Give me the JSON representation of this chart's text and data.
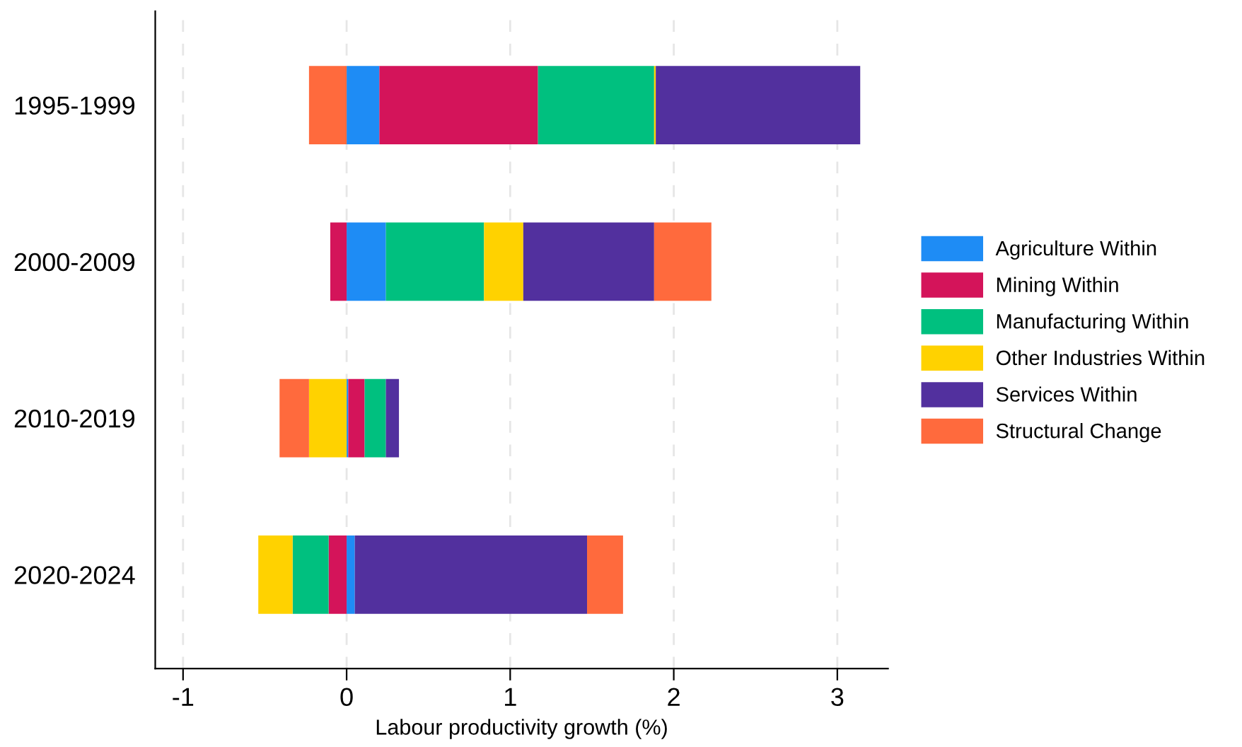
{
  "chart_data": {
    "type": "bar",
    "orientation": "horizontal",
    "stacked": true,
    "xlabel": "Labour productivity growth (%)",
    "categories": [
      "1995-1999",
      "2000-2009",
      "2010-2019",
      "2020-2024"
    ],
    "series": [
      {
        "name": "Agriculture Within",
        "color": "#1e8cf5",
        "values": [
          0.2,
          0.24,
          0.01,
          0.05
        ]
      },
      {
        "name": "Mining Within",
        "color": "#d4145a",
        "values": [
          0.97,
          -0.1,
          0.1,
          -0.11
        ]
      },
      {
        "name": "Manufacturing Within",
        "color": "#00c07f",
        "values": [
          0.71,
          0.6,
          0.13,
          -0.22
        ]
      },
      {
        "name": "Other Industries Within",
        "color": "#ffd200",
        "values": [
          0.01,
          0.24,
          -0.23,
          -0.21
        ]
      },
      {
        "name": "Services Within",
        "color": "#52309e",
        "values": [
          1.25,
          0.8,
          0.08,
          1.42
        ]
      },
      {
        "name": "Structural Change",
        "color": "#ff6a3d",
        "values": [
          -0.23,
          0.35,
          -0.18,
          0.22
        ]
      }
    ],
    "xlim": [
      -1.17,
      3.31
    ],
    "xticks": [
      -1,
      0,
      1,
      2,
      3
    ],
    "grid": "x",
    "legend": "right"
  }
}
